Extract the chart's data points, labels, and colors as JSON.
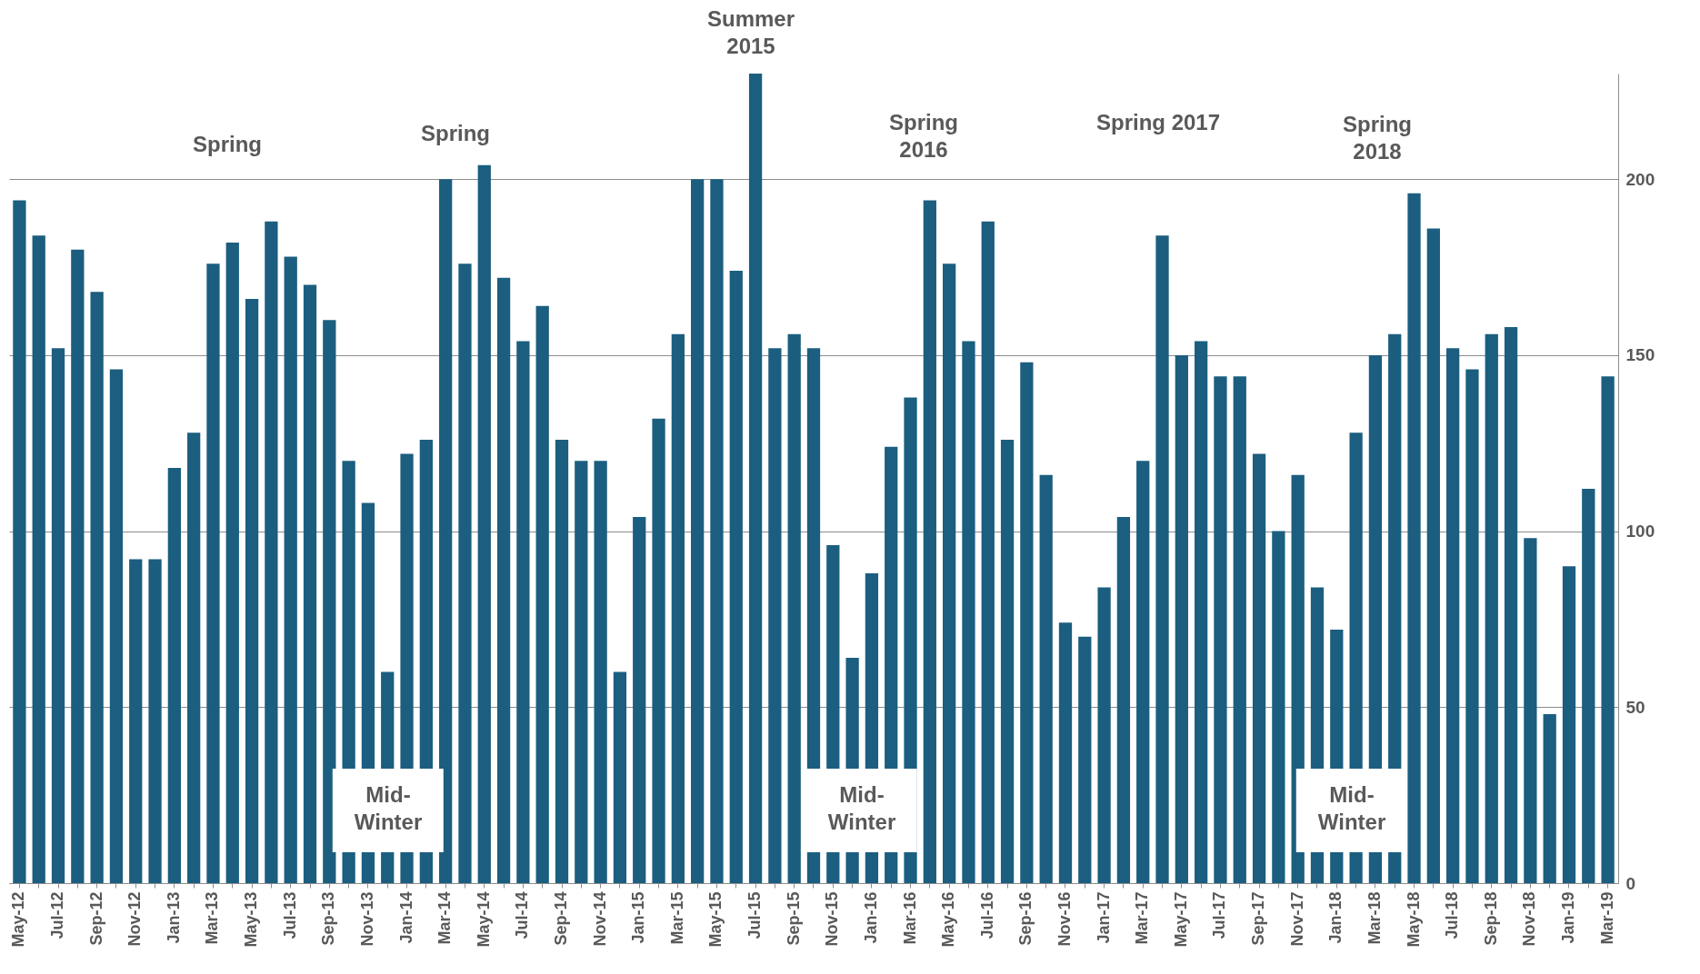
{
  "chart_data": {
    "type": "bar",
    "color": "#1b5e7f",
    "categories": [
      "May-12",
      null,
      "Jul-12",
      null,
      "Sep-12",
      null,
      "Nov-12",
      null,
      "Jan-13",
      null,
      "Mar-13",
      null,
      "May-13",
      null,
      "Jul-13",
      null,
      "Sep-13",
      null,
      "Nov-13",
      null,
      "Jan-14",
      null,
      "Mar-14",
      null,
      "May-14",
      null,
      "Jul-14",
      null,
      "Sep-14",
      null,
      "Nov-14",
      null,
      "Jan-15",
      null,
      "Mar-15",
      null,
      "May-15",
      null,
      "Jul-15",
      null,
      "Sep-15",
      null,
      "Nov-15",
      null,
      "Jan-16",
      null,
      "Mar-16",
      null,
      "May-16",
      null,
      "Jul-16",
      null,
      "Sep-16",
      null,
      "Nov-16",
      null,
      "Jan-17",
      null,
      "Mar-17",
      null,
      "May-17",
      null,
      "Jul-17",
      null,
      "Sep-17",
      null,
      "Nov-17",
      null,
      "Jan-18",
      null,
      "Mar-18",
      null,
      "May-18",
      null,
      "Jul-18",
      null,
      "Sep-18",
      null,
      "Nov-18",
      null,
      "Jan-19",
      null,
      "Mar-19"
    ],
    "values": [
      194,
      184,
      152,
      180,
      168,
      146,
      92,
      92,
      118,
      128,
      176,
      182,
      166,
      188,
      178,
      170,
      160,
      120,
      108,
      60,
      122,
      126,
      200,
      176,
      204,
      172,
      154,
      164,
      126,
      120,
      120,
      60,
      104,
      132,
      156,
      200,
      200,
      174,
      230,
      152,
      156,
      152,
      96,
      64,
      88,
      124,
      138,
      194,
      176,
      154,
      188,
      126,
      148,
      116,
      74,
      70,
      84,
      104,
      120,
      184,
      150,
      154,
      144,
      144,
      122,
      100,
      116,
      84,
      72,
      128,
      150,
      156,
      196,
      186,
      152,
      146,
      156,
      158,
      98,
      48,
      90,
      112,
      144
    ],
    "ylim": [
      0,
      230
    ],
    "yticks": [
      0,
      50,
      100,
      150,
      200
    ],
    "grid": "y",
    "annotations": [
      "Spring",
      "Spring",
      "Summer\n2015",
      "Spring\n2016",
      "Spring 2017",
      "Spring\n2018",
      "Mid-\nWinter",
      "Mid-\nWinter",
      "Mid-\nWinter"
    ]
  }
}
